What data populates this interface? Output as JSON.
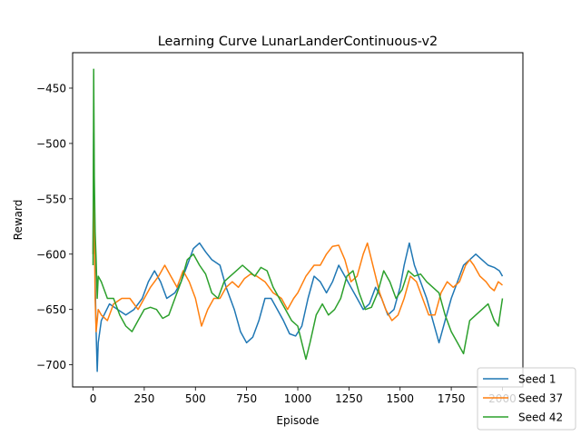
{
  "chart_data": {
    "type": "line",
    "title": "Learning Curve LunarLanderContinuous-v2",
    "xlabel": "Episode",
    "ylabel": "Reward",
    "xlim": [
      -100,
      2100
    ],
    "ylim": [
      -720,
      -418
    ],
    "xticks": [
      {
        "value": 0,
        "label": "0"
      },
      {
        "value": 250,
        "label": "250"
      },
      {
        "value": 500,
        "label": "500"
      },
      {
        "value": 750,
        "label": "750"
      },
      {
        "value": 1000,
        "label": "1000"
      },
      {
        "value": 1250,
        "label": "1250"
      },
      {
        "value": 1500,
        "label": "1500"
      },
      {
        "value": 1750,
        "label": "1750"
      },
      {
        "value": 2000,
        "label": "2000"
      }
    ],
    "yticks": [
      {
        "value": -700,
        "label": "−700"
      },
      {
        "value": -650,
        "label": "−650"
      },
      {
        "value": -600,
        "label": "−600"
      },
      {
        "value": -550,
        "label": "−550"
      },
      {
        "value": -500,
        "label": "−500"
      },
      {
        "value": -450,
        "label": "−450"
      }
    ],
    "grid": false,
    "legend": "bottom-right",
    "series": [
      {
        "name": "Seed 1",
        "color": "#1f77b4",
        "points": [
          [
            0,
            -600
          ],
          [
            3,
            -490
          ],
          [
            6,
            -560
          ],
          [
            10,
            -620
          ],
          [
            15,
            -670
          ],
          [
            20,
            -706
          ],
          [
            25,
            -680
          ],
          [
            40,
            -660
          ],
          [
            80,
            -645
          ],
          [
            120,
            -650
          ],
          [
            160,
            -655
          ],
          [
            200,
            -650
          ],
          [
            240,
            -640
          ],
          [
            270,
            -625
          ],
          [
            300,
            -615
          ],
          [
            330,
            -625
          ],
          [
            360,
            -640
          ],
          [
            400,
            -635
          ],
          [
            430,
            -625
          ],
          [
            460,
            -610
          ],
          [
            490,
            -595
          ],
          [
            520,
            -590
          ],
          [
            550,
            -598
          ],
          [
            580,
            -605
          ],
          [
            620,
            -610
          ],
          [
            650,
            -630
          ],
          [
            690,
            -650
          ],
          [
            720,
            -670
          ],
          [
            750,
            -680
          ],
          [
            780,
            -675
          ],
          [
            810,
            -660
          ],
          [
            840,
            -640
          ],
          [
            870,
            -640
          ],
          [
            900,
            -650
          ],
          [
            930,
            -660
          ],
          [
            960,
            -672
          ],
          [
            990,
            -674
          ],
          [
            1020,
            -665
          ],
          [
            1050,
            -640
          ],
          [
            1080,
            -620
          ],
          [
            1110,
            -625
          ],
          [
            1140,
            -635
          ],
          [
            1170,
            -625
          ],
          [
            1200,
            -610
          ],
          [
            1230,
            -620
          ],
          [
            1260,
            -630
          ],
          [
            1290,
            -640
          ],
          [
            1320,
            -650
          ],
          [
            1350,
            -645
          ],
          [
            1380,
            -630
          ],
          [
            1410,
            -640
          ],
          [
            1440,
            -655
          ],
          [
            1470,
            -650
          ],
          [
            1500,
            -630
          ],
          [
            1520,
            -610
          ],
          [
            1545,
            -590
          ],
          [
            1570,
            -610
          ],
          [
            1600,
            -625
          ],
          [
            1630,
            -640
          ],
          [
            1660,
            -660
          ],
          [
            1690,
            -680
          ],
          [
            1720,
            -660
          ],
          [
            1750,
            -640
          ],
          [
            1780,
            -625
          ],
          [
            1810,
            -610
          ],
          [
            1840,
            -605
          ],
          [
            1870,
            -600
          ],
          [
            1900,
            -605
          ],
          [
            1930,
            -610
          ],
          [
            1960,
            -612
          ],
          [
            1985,
            -615
          ],
          [
            2000,
            -620
          ]
        ]
      },
      {
        "name": "Seed 37",
        "color": "#ff7f0e",
        "points": [
          [
            0,
            -600
          ],
          [
            3,
            -505
          ],
          [
            6,
            -570
          ],
          [
            10,
            -640
          ],
          [
            15,
            -670
          ],
          [
            20,
            -660
          ],
          [
            25,
            -650
          ],
          [
            40,
            -655
          ],
          [
            70,
            -660
          ],
          [
            100,
            -645
          ],
          [
            140,
            -640
          ],
          [
            180,
            -640
          ],
          [
            220,
            -650
          ],
          [
            250,
            -640
          ],
          [
            280,
            -630
          ],
          [
            320,
            -620
          ],
          [
            350,
            -610
          ],
          [
            380,
            -620
          ],
          [
            410,
            -630
          ],
          [
            440,
            -615
          ],
          [
            470,
            -625
          ],
          [
            500,
            -640
          ],
          [
            530,
            -665
          ],
          [
            560,
            -650
          ],
          [
            590,
            -640
          ],
          [
            620,
            -640
          ],
          [
            650,
            -630
          ],
          [
            680,
            -625
          ],
          [
            710,
            -630
          ],
          [
            740,
            -622
          ],
          [
            770,
            -618
          ],
          [
            800,
            -620
          ],
          [
            840,
            -625
          ],
          [
            880,
            -635
          ],
          [
            920,
            -640
          ],
          [
            950,
            -650
          ],
          [
            980,
            -640
          ],
          [
            1000,
            -635
          ],
          [
            1040,
            -620
          ],
          [
            1080,
            -610
          ],
          [
            1110,
            -610
          ],
          [
            1140,
            -600
          ],
          [
            1170,
            -593
          ],
          [
            1200,
            -592
          ],
          [
            1230,
            -605
          ],
          [
            1260,
            -625
          ],
          [
            1290,
            -620
          ],
          [
            1320,
            -600
          ],
          [
            1340,
            -590
          ],
          [
            1360,
            -605
          ],
          [
            1380,
            -620
          ],
          [
            1400,
            -635
          ],
          [
            1430,
            -650
          ],
          [
            1460,
            -660
          ],
          [
            1490,
            -655
          ],
          [
            1520,
            -640
          ],
          [
            1550,
            -620
          ],
          [
            1580,
            -625
          ],
          [
            1610,
            -640
          ],
          [
            1640,
            -655
          ],
          [
            1670,
            -655
          ],
          [
            1700,
            -635
          ],
          [
            1730,
            -625
          ],
          [
            1760,
            -630
          ],
          [
            1790,
            -625
          ],
          [
            1820,
            -610
          ],
          [
            1840,
            -605
          ],
          [
            1860,
            -610
          ],
          [
            1890,
            -620
          ],
          [
            1920,
            -625
          ],
          [
            1940,
            -630
          ],
          [
            1960,
            -633
          ],
          [
            1980,
            -625
          ],
          [
            2000,
            -628
          ]
        ]
      },
      {
        "name": "Seed 42",
        "color": "#2ca02c",
        "points": [
          [
            0,
            -610
          ],
          [
            3,
            -433
          ],
          [
            6,
            -530
          ],
          [
            10,
            -580
          ],
          [
            15,
            -605
          ],
          [
            20,
            -640
          ],
          [
            25,
            -620
          ],
          [
            40,
            -625
          ],
          [
            70,
            -640
          ],
          [
            100,
            -640
          ],
          [
            130,
            -655
          ],
          [
            160,
            -665
          ],
          [
            190,
            -670
          ],
          [
            220,
            -660
          ],
          [
            250,
            -650
          ],
          [
            280,
            -648
          ],
          [
            310,
            -650
          ],
          [
            340,
            -658
          ],
          [
            370,
            -655
          ],
          [
            400,
            -640
          ],
          [
            430,
            -625
          ],
          [
            460,
            -605
          ],
          [
            490,
            -600
          ],
          [
            520,
            -610
          ],
          [
            550,
            -618
          ],
          [
            580,
            -635
          ],
          [
            610,
            -640
          ],
          [
            640,
            -625
          ],
          [
            670,
            -620
          ],
          [
            700,
            -615
          ],
          [
            730,
            -610
          ],
          [
            760,
            -615
          ],
          [
            790,
            -620
          ],
          [
            820,
            -612
          ],
          [
            850,
            -615
          ],
          [
            880,
            -630
          ],
          [
            910,
            -640
          ],
          [
            940,
            -650
          ],
          [
            970,
            -660
          ],
          [
            1000,
            -665
          ],
          [
            1020,
            -680
          ],
          [
            1040,
            -695
          ],
          [
            1060,
            -680
          ],
          [
            1090,
            -655
          ],
          [
            1120,
            -645
          ],
          [
            1150,
            -655
          ],
          [
            1180,
            -650
          ],
          [
            1210,
            -640
          ],
          [
            1240,
            -620
          ],
          [
            1270,
            -615
          ],
          [
            1300,
            -635
          ],
          [
            1330,
            -650
          ],
          [
            1360,
            -648
          ],
          [
            1390,
            -635
          ],
          [
            1420,
            -615
          ],
          [
            1450,
            -625
          ],
          [
            1480,
            -640
          ],
          [
            1510,
            -632
          ],
          [
            1540,
            -615
          ],
          [
            1570,
            -620
          ],
          [
            1600,
            -618
          ],
          [
            1630,
            -625
          ],
          [
            1660,
            -630
          ],
          [
            1690,
            -635
          ],
          [
            1720,
            -655
          ],
          [
            1750,
            -670
          ],
          [
            1780,
            -680
          ],
          [
            1810,
            -690
          ],
          [
            1840,
            -660
          ],
          [
            1870,
            -655
          ],
          [
            1900,
            -650
          ],
          [
            1930,
            -645
          ],
          [
            1960,
            -660
          ],
          [
            1980,
            -665
          ],
          [
            2000,
            -640
          ]
        ]
      }
    ]
  }
}
